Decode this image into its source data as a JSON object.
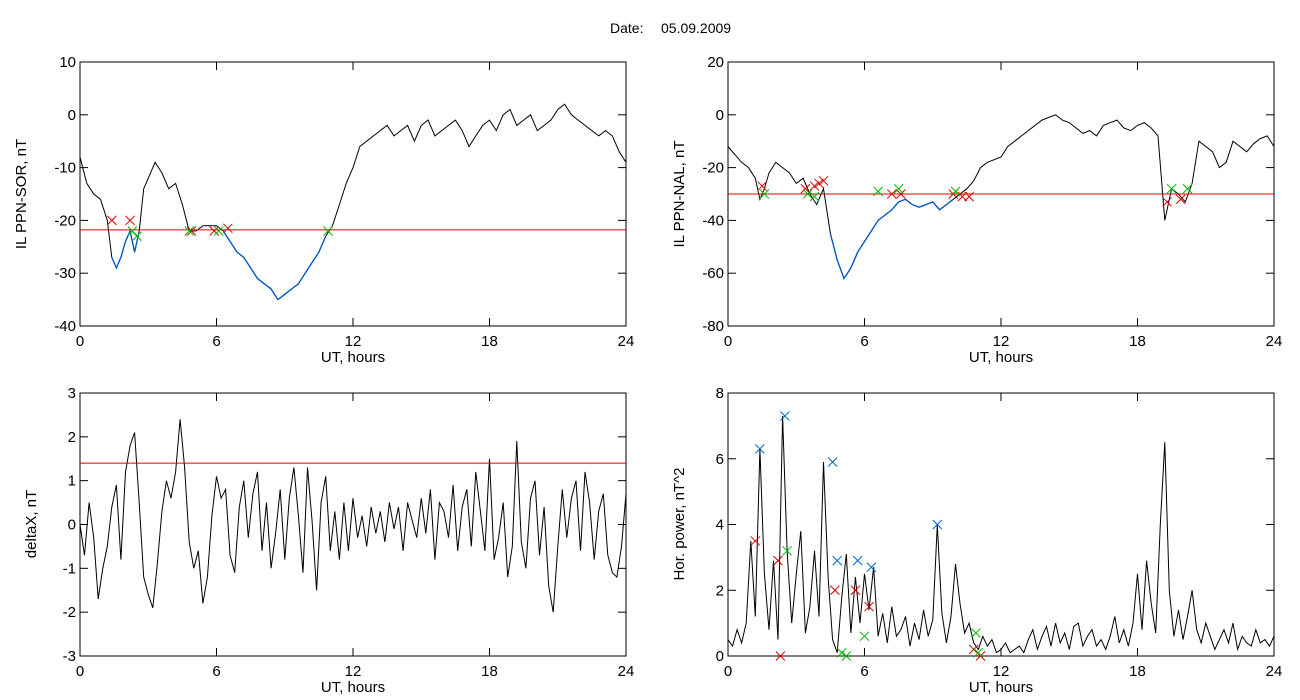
{
  "figure": {
    "date_label": "Date:",
    "date_value": "05.09.2009"
  },
  "colors": {
    "trace": "#000000",
    "below": "#0055cc",
    "threshold": "#dd0000",
    "marker_red": "#dd0000",
    "marker_green": "#00bb00",
    "marker_blue": "#0066cc"
  },
  "chart_data": [
    {
      "id": "sor",
      "type": "line",
      "xlabel": "UT, hours",
      "ylabel": "IL PPN-SOR, nT",
      "xlim": [
        0,
        24
      ],
      "ylim": [
        -40,
        10
      ],
      "xticks": [
        0,
        6,
        12,
        18,
        24
      ],
      "yticks": [
        -40,
        -30,
        -20,
        -10,
        0,
        10
      ],
      "threshold": -21.8,
      "series": [
        {
          "color": "#000000",
          "below_color": "#0055cc",
          "x": [
            0,
            0.3,
            0.6,
            0.9,
            1.2,
            1.4,
            1.6,
            1.8,
            2.0,
            2.2,
            2.4,
            2.6,
            2.8,
            3.0,
            3.3,
            3.6,
            3.9,
            4.2,
            4.5,
            4.8,
            5.1,
            5.4,
            5.7,
            6.0,
            6.3,
            6.6,
            6.9,
            7.2,
            7.5,
            7.8,
            8.1,
            8.4,
            8.7,
            9.0,
            9.3,
            9.6,
            9.9,
            10.2,
            10.5,
            10.8,
            11.1,
            11.4,
            11.7,
            12.0,
            12.3,
            12.6,
            12.9,
            13.2,
            13.5,
            13.8,
            14.1,
            14.4,
            14.7,
            15.0,
            15.3,
            15.6,
            15.9,
            16.2,
            16.5,
            16.8,
            17.1,
            17.4,
            17.7,
            18.0,
            18.3,
            18.6,
            18.9,
            19.2,
            19.5,
            19.8,
            20.1,
            20.4,
            20.7,
            21.0,
            21.3,
            21.6,
            21.9,
            22.2,
            22.5,
            22.8,
            23.1,
            23.4,
            23.7,
            24.0
          ],
          "y": [
            -8,
            -13,
            -15,
            -16,
            -20,
            -27,
            -29,
            -27,
            -24,
            -22,
            -26,
            -22,
            -14,
            -12,
            -9,
            -11,
            -14,
            -13,
            -17,
            -22,
            -22,
            -21,
            -21,
            -21,
            -22,
            -24,
            -26,
            -27,
            -29,
            -31,
            -32,
            -33,
            -35,
            -34,
            -33,
            -32,
            -30,
            -28,
            -26,
            -23,
            -21,
            -17,
            -13,
            -10,
            -6,
            -5,
            -4,
            -3,
            -2,
            -4,
            -3,
            -2,
            -5,
            -2,
            -1,
            -4,
            -3,
            -2,
            -1,
            -3,
            -6,
            -4,
            -2,
            -1,
            -3,
            0,
            1,
            -2,
            -1,
            0,
            -3,
            -2,
            -1,
            1,
            2,
            0,
            -1,
            -2,
            -3,
            -4,
            -3,
            -4,
            -7,
            -9
          ]
        }
      ],
      "markers": [
        {
          "color": "#dd0000",
          "x": [
            1.4,
            2.2,
            4.9,
            5.9,
            6.5
          ],
          "y": [
            -20,
            -20,
            -22,
            -22,
            -21.5
          ]
        },
        {
          "color": "#00bb00",
          "x": [
            2.3,
            2.5,
            4.8,
            6.1,
            10.9
          ],
          "y": [
            -22,
            -23,
            -22,
            -22,
            -22
          ]
        }
      ]
    },
    {
      "id": "nal",
      "type": "line",
      "xlabel": "UT, hours",
      "ylabel": "IL PPN-NAL, nT",
      "xlim": [
        0,
        24
      ],
      "ylim": [
        -80,
        20
      ],
      "xticks": [
        0,
        6,
        12,
        18,
        24
      ],
      "yticks": [
        -80,
        -60,
        -40,
        -20,
        0,
        20
      ],
      "threshold": -30,
      "series": [
        {
          "color": "#000000",
          "below_color": "#0055cc",
          "x": [
            0,
            0.3,
            0.6,
            0.9,
            1.2,
            1.4,
            1.6,
            1.8,
            2.1,
            2.4,
            2.7,
            3.0,
            3.3,
            3.6,
            3.9,
            4.2,
            4.5,
            4.8,
            5.1,
            5.4,
            5.7,
            6.0,
            6.3,
            6.6,
            6.9,
            7.2,
            7.5,
            7.8,
            8.1,
            8.4,
            8.7,
            9.0,
            9.3,
            9.6,
            9.9,
            10.2,
            10.5,
            10.8,
            11.1,
            11.4,
            11.7,
            12.0,
            12.3,
            12.6,
            12.9,
            13.2,
            13.5,
            13.8,
            14.1,
            14.4,
            14.7,
            15.0,
            15.3,
            15.6,
            15.9,
            16.2,
            16.5,
            16.8,
            17.1,
            17.4,
            17.7,
            18.0,
            18.3,
            18.6,
            18.9,
            19.2,
            19.5,
            19.8,
            20.1,
            20.4,
            20.7,
            21.0,
            21.3,
            21.6,
            21.9,
            22.2,
            22.5,
            22.8,
            23.1,
            23.4,
            23.7,
            24.0
          ],
          "y": [
            -12,
            -15,
            -18,
            -20,
            -24,
            -32,
            -28,
            -22,
            -18,
            -20,
            -22,
            -26,
            -24,
            -30,
            -34,
            -28,
            -45,
            -55,
            -62,
            -58,
            -52,
            -48,
            -44,
            -40,
            -38,
            -36,
            -33,
            -32,
            -34,
            -35,
            -34,
            -33,
            -36,
            -34,
            -32,
            -30,
            -28,
            -25,
            -20,
            -18,
            -17,
            -16,
            -12,
            -10,
            -8,
            -6,
            -4,
            -2,
            -1,
            0,
            -2,
            -3,
            -5,
            -7,
            -6,
            -8,
            -4,
            -3,
            -2,
            -5,
            -6,
            -4,
            -3,
            -5,
            -8,
            -40,
            -28,
            -30,
            -33,
            -26,
            -10,
            -12,
            -14,
            -20,
            -18,
            -10,
            -12,
            -14,
            -11,
            -9,
            -8,
            -12
          ]
        }
      ],
      "markers": [
        {
          "color": "#dd0000",
          "x": [
            1.5,
            3.4,
            3.8,
            4.0,
            4.2,
            7.2,
            7.6,
            9.9,
            10.3,
            10.6,
            19.3,
            19.9
          ],
          "y": [
            -27,
            -28,
            -27,
            -26,
            -25,
            -30,
            -30,
            -30,
            -31,
            -31,
            -33,
            -32
          ]
        },
        {
          "color": "#00bb00",
          "x": [
            1.6,
            3.5,
            3.8,
            6.6,
            7.5,
            10.0,
            19.5,
            20.2
          ],
          "y": [
            -30,
            -30,
            -31,
            -29,
            -28,
            -29,
            -28,
            -28
          ]
        }
      ]
    },
    {
      "id": "deltax",
      "type": "line",
      "xlabel": "UT, hours",
      "ylabel": "deltaX, nT",
      "xlim": [
        0,
        24
      ],
      "ylim": [
        -3,
        3
      ],
      "xticks": [
        0,
        6,
        12,
        18,
        24
      ],
      "yticks": [
        -3,
        -2,
        -1,
        0,
        1,
        2,
        3
      ],
      "threshold": 1.4,
      "series": [
        {
          "color": "#000000",
          "x": [
            0,
            0.2,
            0.4,
            0.6,
            0.8,
            1.0,
            1.2,
            1.4,
            1.6,
            1.8,
            2.0,
            2.2,
            2.4,
            2.6,
            2.8,
            3.0,
            3.2,
            3.4,
            3.6,
            3.8,
            4.0,
            4.2,
            4.4,
            4.6,
            4.8,
            5.0,
            5.2,
            5.4,
            5.6,
            5.8,
            6.0,
            6.2,
            6.4,
            6.6,
            6.8,
            7.0,
            7.2,
            7.4,
            7.6,
            7.8,
            8.0,
            8.2,
            8.4,
            8.6,
            8.8,
            9.0,
            9.2,
            9.4,
            9.6,
            9.8,
            10.0,
            10.2,
            10.4,
            10.6,
            10.8,
            11.0,
            11.2,
            11.4,
            11.6,
            11.8,
            12.0,
            12.2,
            12.4,
            12.6,
            12.8,
            13.0,
            13.2,
            13.4,
            13.6,
            13.8,
            14.0,
            14.2,
            14.4,
            14.6,
            14.8,
            15.0,
            15.2,
            15.4,
            15.6,
            15.8,
            16.0,
            16.2,
            16.4,
            16.6,
            16.8,
            17.0,
            17.2,
            17.4,
            17.6,
            17.8,
            18.0,
            18.2,
            18.4,
            18.6,
            18.8,
            19.0,
            19.2,
            19.4,
            19.6,
            19.8,
            20.0,
            20.2,
            20.4,
            20.6,
            20.8,
            21.0,
            21.2,
            21.4,
            21.6,
            21.8,
            22.0,
            22.2,
            22.4,
            22.6,
            22.8,
            23.0,
            23.2,
            23.4,
            23.6,
            23.8,
            24.0
          ],
          "y": [
            0,
            -0.7,
            0.5,
            -0.3,
            -1.7,
            -1.0,
            -0.5,
            0.4,
            0.9,
            -0.8,
            1.2,
            1.8,
            2.1,
            0.5,
            -1.2,
            -1.6,
            -1.9,
            -0.9,
            0.3,
            1.0,
            0.6,
            1.2,
            2.4,
            1.3,
            -0.4,
            -1.0,
            -0.6,
            -1.8,
            -1.2,
            0.2,
            1.1,
            0.6,
            0.8,
            -0.7,
            -1.1,
            0.4,
            1.0,
            -0.3,
            0.7,
            1.2,
            -0.6,
            0.5,
            -1.0,
            -0.2,
            0.8,
            -0.8,
            0.6,
            1.3,
            0.2,
            -1.1,
            1.3,
            0.1,
            -1.5,
            0.5,
            1.1,
            -0.6,
            0.3,
            -0.8,
            0.5,
            -0.6,
            0.6,
            -0.3,
            0.2,
            -0.5,
            0.4,
            -0.2,
            0.3,
            -0.4,
            0.5,
            -0.1,
            0.4,
            -0.6,
            0.5,
            0.1,
            -0.3,
            0.6,
            -0.2,
            0.8,
            -0.8,
            0.5,
            0.3,
            -0.3,
            0.9,
            -0.6,
            0.4,
            0.8,
            -0.5,
            1.2,
            0.3,
            -0.6,
            1.5,
            -0.8,
            -0.3,
            0.5,
            -1.2,
            -0.5,
            1.9,
            -0.4,
            -1.0,
            0.6,
            1.0,
            -0.7,
            0.4,
            -1.4,
            -2.0,
            -0.5,
            0.8,
            -0.3,
            0.6,
            1.0,
            -0.6,
            1.2,
            0.5,
            -0.8,
            0.3,
            0.7,
            -0.7,
            -1.1,
            -1.2,
            -0.5,
            0.7
          ]
        }
      ],
      "markers": []
    },
    {
      "id": "power",
      "type": "line",
      "xlabel": "UT, hours",
      "ylabel": "Hor. power, nT^2",
      "xlim": [
        0,
        24
      ],
      "ylim": [
        0,
        8
      ],
      "xticks": [
        0,
        6,
        12,
        18,
        24
      ],
      "yticks": [
        0,
        2,
        4,
        6,
        8
      ],
      "threshold": null,
      "series": [
        {
          "color": "#000000",
          "x": [
            0,
            0.2,
            0.4,
            0.6,
            0.8,
            1.0,
            1.2,
            1.4,
            1.6,
            1.8,
            2.0,
            2.2,
            2.4,
            2.6,
            2.8,
            3.0,
            3.2,
            3.4,
            3.6,
            3.8,
            4.0,
            4.2,
            4.4,
            4.6,
            4.8,
            5.0,
            5.2,
            5.4,
            5.6,
            5.8,
            6.0,
            6.2,
            6.4,
            6.6,
            6.8,
            7.0,
            7.2,
            7.4,
            7.6,
            7.8,
            8.0,
            8.2,
            8.4,
            8.6,
            8.8,
            9.0,
            9.2,
            9.4,
            9.6,
            9.8,
            10.0,
            10.2,
            10.4,
            10.6,
            10.8,
            11.0,
            11.2,
            11.4,
            11.6,
            11.8,
            12.0,
            12.2,
            12.4,
            12.6,
            12.8,
            13.0,
            13.2,
            13.4,
            13.6,
            13.8,
            14.0,
            14.2,
            14.4,
            14.6,
            14.8,
            15.0,
            15.2,
            15.4,
            15.6,
            15.8,
            16.0,
            16.2,
            16.4,
            16.6,
            16.8,
            17.0,
            17.2,
            17.4,
            17.6,
            17.8,
            18.0,
            18.2,
            18.4,
            18.6,
            18.8,
            19.0,
            19.2,
            19.4,
            19.6,
            19.8,
            20.0,
            20.2,
            20.4,
            20.6,
            20.8,
            21.0,
            21.2,
            21.4,
            21.6,
            21.8,
            22.0,
            22.2,
            22.4,
            22.6,
            22.8,
            23.0,
            23.2,
            23.4,
            23.6,
            23.8,
            24.0
          ],
          "y": [
            0.5,
            0.3,
            0.8,
            0.4,
            1.0,
            3.5,
            1.2,
            6.3,
            2.5,
            0.8,
            2.9,
            0.5,
            7.3,
            3.2,
            1.0,
            2.5,
            3.8,
            0.7,
            1.5,
            3.2,
            1.2,
            5.9,
            2.4,
            0.5,
            0.1,
            1.8,
            3.1,
            0.7,
            2.4,
            1.0,
            2.5,
            1.4,
            2.7,
            0.6,
            1.3,
            0.4,
            1.5,
            0.6,
            0.8,
            1.2,
            0.3,
            1.0,
            0.5,
            1.4,
            0.6,
            1.1,
            4.0,
            1.3,
            0.4,
            1.2,
            2.8,
            1.6,
            0.7,
            1.0,
            0.4,
            0.2,
            0.6,
            0.3,
            0.5,
            0.1,
            0.2,
            0.4,
            0.1,
            0.2,
            0.3,
            0.1,
            0.5,
            0.8,
            0.2,
            0.6,
            0.9,
            0.3,
            1.0,
            0.4,
            0.7,
            0.2,
            0.9,
            1.0,
            0.3,
            0.6,
            0.8,
            0.3,
            0.5,
            0.2,
            0.6,
            1.2,
            0.4,
            0.8,
            0.3,
            1.0,
            2.5,
            0.8,
            2.9,
            1.6,
            0.7,
            4.0,
            6.5,
            2.0,
            0.6,
            1.4,
            0.5,
            1.2,
            2.0,
            0.8,
            0.4,
            1.0,
            0.6,
            0.2,
            0.5,
            0.8,
            0.4,
            1.0,
            0.2,
            0.6,
            0.4,
            0.3,
            0.8,
            0.4,
            0.5,
            0.3,
            0.6
          ]
        }
      ],
      "markers": [
        {
          "color": "#0066cc",
          "x": [
            1.4,
            2.5,
            4.6,
            4.8,
            5.7,
            6.3,
            9.2
          ],
          "y": [
            6.3,
            7.3,
            5.9,
            2.9,
            2.9,
            2.7,
            4.0
          ]
        },
        {
          "color": "#dd0000",
          "x": [
            1.2,
            2.2,
            2.3,
            4.7,
            5.6,
            6.2,
            10.8,
            11.1
          ],
          "y": [
            3.5,
            2.9,
            0.0,
            2.0,
            2.0,
            1.5,
            0.2,
            0.0
          ]
        },
        {
          "color": "#00bb00",
          "x": [
            2.6,
            5.0,
            5.2,
            6.0,
            10.9,
            11.0
          ],
          "y": [
            3.2,
            0.1,
            0.0,
            0.6,
            0.7,
            0.1
          ]
        }
      ]
    }
  ]
}
